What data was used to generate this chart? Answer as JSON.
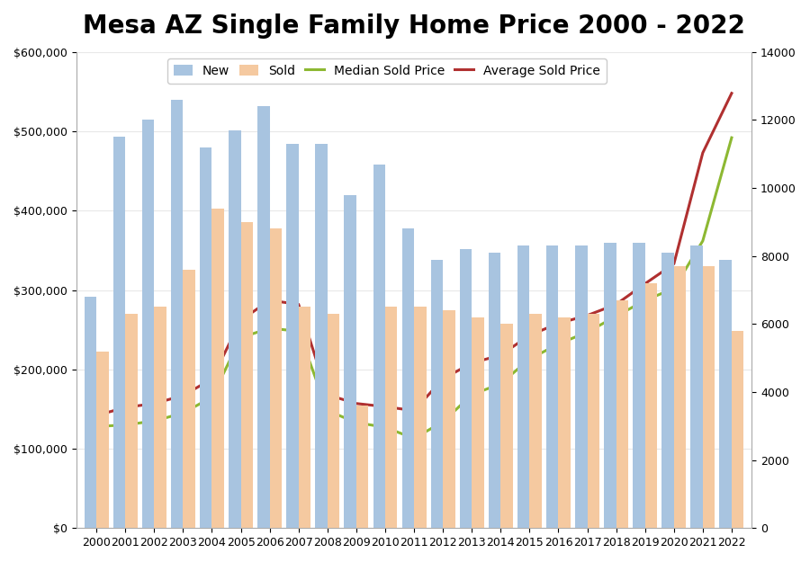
{
  "title": "Mesa AZ Single Family Home Price 2000 - 2022",
  "years": [
    2000,
    2001,
    2002,
    2003,
    2004,
    2005,
    2006,
    2007,
    2008,
    2009,
    2010,
    2011,
    2012,
    2013,
    2014,
    2015,
    2016,
    2017,
    2018,
    2019,
    2020,
    2021,
    2022
  ],
  "new_count": [
    6800,
    11500,
    12000,
    12600,
    11200,
    11700,
    12400,
    11300,
    11300,
    9800,
    10700,
    8800,
    7900,
    8200,
    8100,
    8300,
    8300,
    8300,
    8400,
    8400,
    8100,
    8300,
    7900
  ],
  "sold_count": [
    5200,
    6300,
    6500,
    7600,
    9400,
    9000,
    8800,
    6500,
    6300,
    3600,
    6500,
    6500,
    6400,
    6200,
    6000,
    6300,
    6200,
    6300,
    6700,
    7200,
    7700,
    7700,
    5800
  ],
  "median_sold_price": [
    128000,
    130000,
    135000,
    145000,
    165000,
    240000,
    252000,
    248000,
    148000,
    133000,
    127000,
    113000,
    134000,
    168000,
    182000,
    213000,
    232000,
    247000,
    267000,
    287000,
    302000,
    362000,
    492000
  ],
  "average_sold_price": [
    142000,
    152000,
    157000,
    167000,
    188000,
    262000,
    287000,
    282000,
    168000,
    157000,
    153000,
    148000,
    188000,
    208000,
    218000,
    243000,
    258000,
    268000,
    282000,
    308000,
    333000,
    473000,
    548000
  ],
  "new_color": "#a8c4e0",
  "sold_color": "#f5c9a0",
  "median_color": "#8db832",
  "average_color": "#b03030",
  "background_color": "#ffffff",
  "left_ylim": [
    0,
    600000
  ],
  "right_ylim": [
    0,
    14000
  ],
  "left_yticks": [
    0,
    100000,
    200000,
    300000,
    400000,
    500000,
    600000
  ],
  "right_yticks": [
    0,
    2000,
    4000,
    6000,
    8000,
    10000,
    12000,
    14000
  ],
  "title_fontsize": 20,
  "legend_fontsize": 10,
  "tick_fontsize": 9
}
